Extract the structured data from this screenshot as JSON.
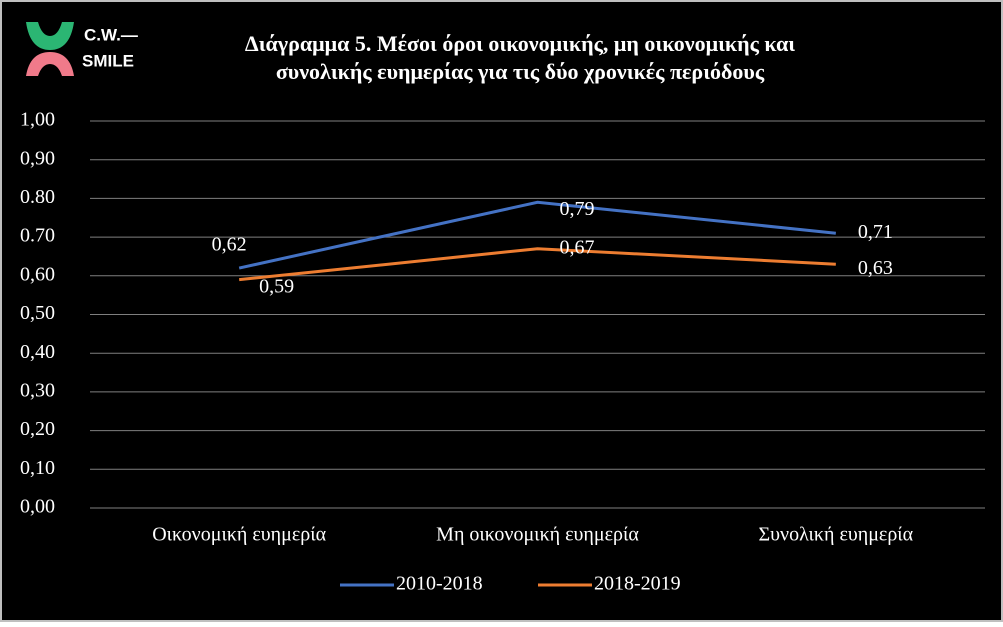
{
  "logo_text": [
    "C.W.—",
    "SMILE"
  ],
  "chart_data": {
    "type": "line",
    "title": "Διάγραμμα 5. Μέσοι όροι οικονομικής, μη οικονομικής και\nσυνολικής ευημερίας για τις δύο χρονικές περιόδους",
    "categories": [
      "Οικονομική ευημερία",
      "Μη οικονομική ευημερία",
      "Συνολική ευημερία"
    ],
    "series": [
      {
        "name": "2010-2018",
        "color": "#4472c4",
        "values": [
          0.62,
          0.79,
          0.71
        ],
        "value_labels": [
          "0,62",
          "0,79",
          "0,71"
        ]
      },
      {
        "name": "2018-2019",
        "color": "#ed7d31",
        "values": [
          0.59,
          0.67,
          0.63
        ],
        "value_labels": [
          "0,59",
          "0,67",
          "0,63"
        ]
      }
    ],
    "ylim": [
      0,
      1
    ],
    "yticks": [
      {
        "value": 0,
        "label": "0,00"
      },
      {
        "value": 0.1,
        "label": "0,10"
      },
      {
        "value": 0.2,
        "label": "0,20"
      },
      {
        "value": 0.3,
        "label": "0,30"
      },
      {
        "value": 0.4,
        "label": "0,40"
      },
      {
        "value": 0.5,
        "label": "0,50"
      },
      {
        "value": 0.6,
        "label": "0,60"
      },
      {
        "value": 0.7,
        "label": "0.70"
      },
      {
        "value": 0.8,
        "label": "0.80"
      },
      {
        "value": 0.9,
        "label": "0,90"
      },
      {
        "value": 1,
        "label": "1,00"
      }
    ],
    "grid": true,
    "legend": "bottom"
  }
}
